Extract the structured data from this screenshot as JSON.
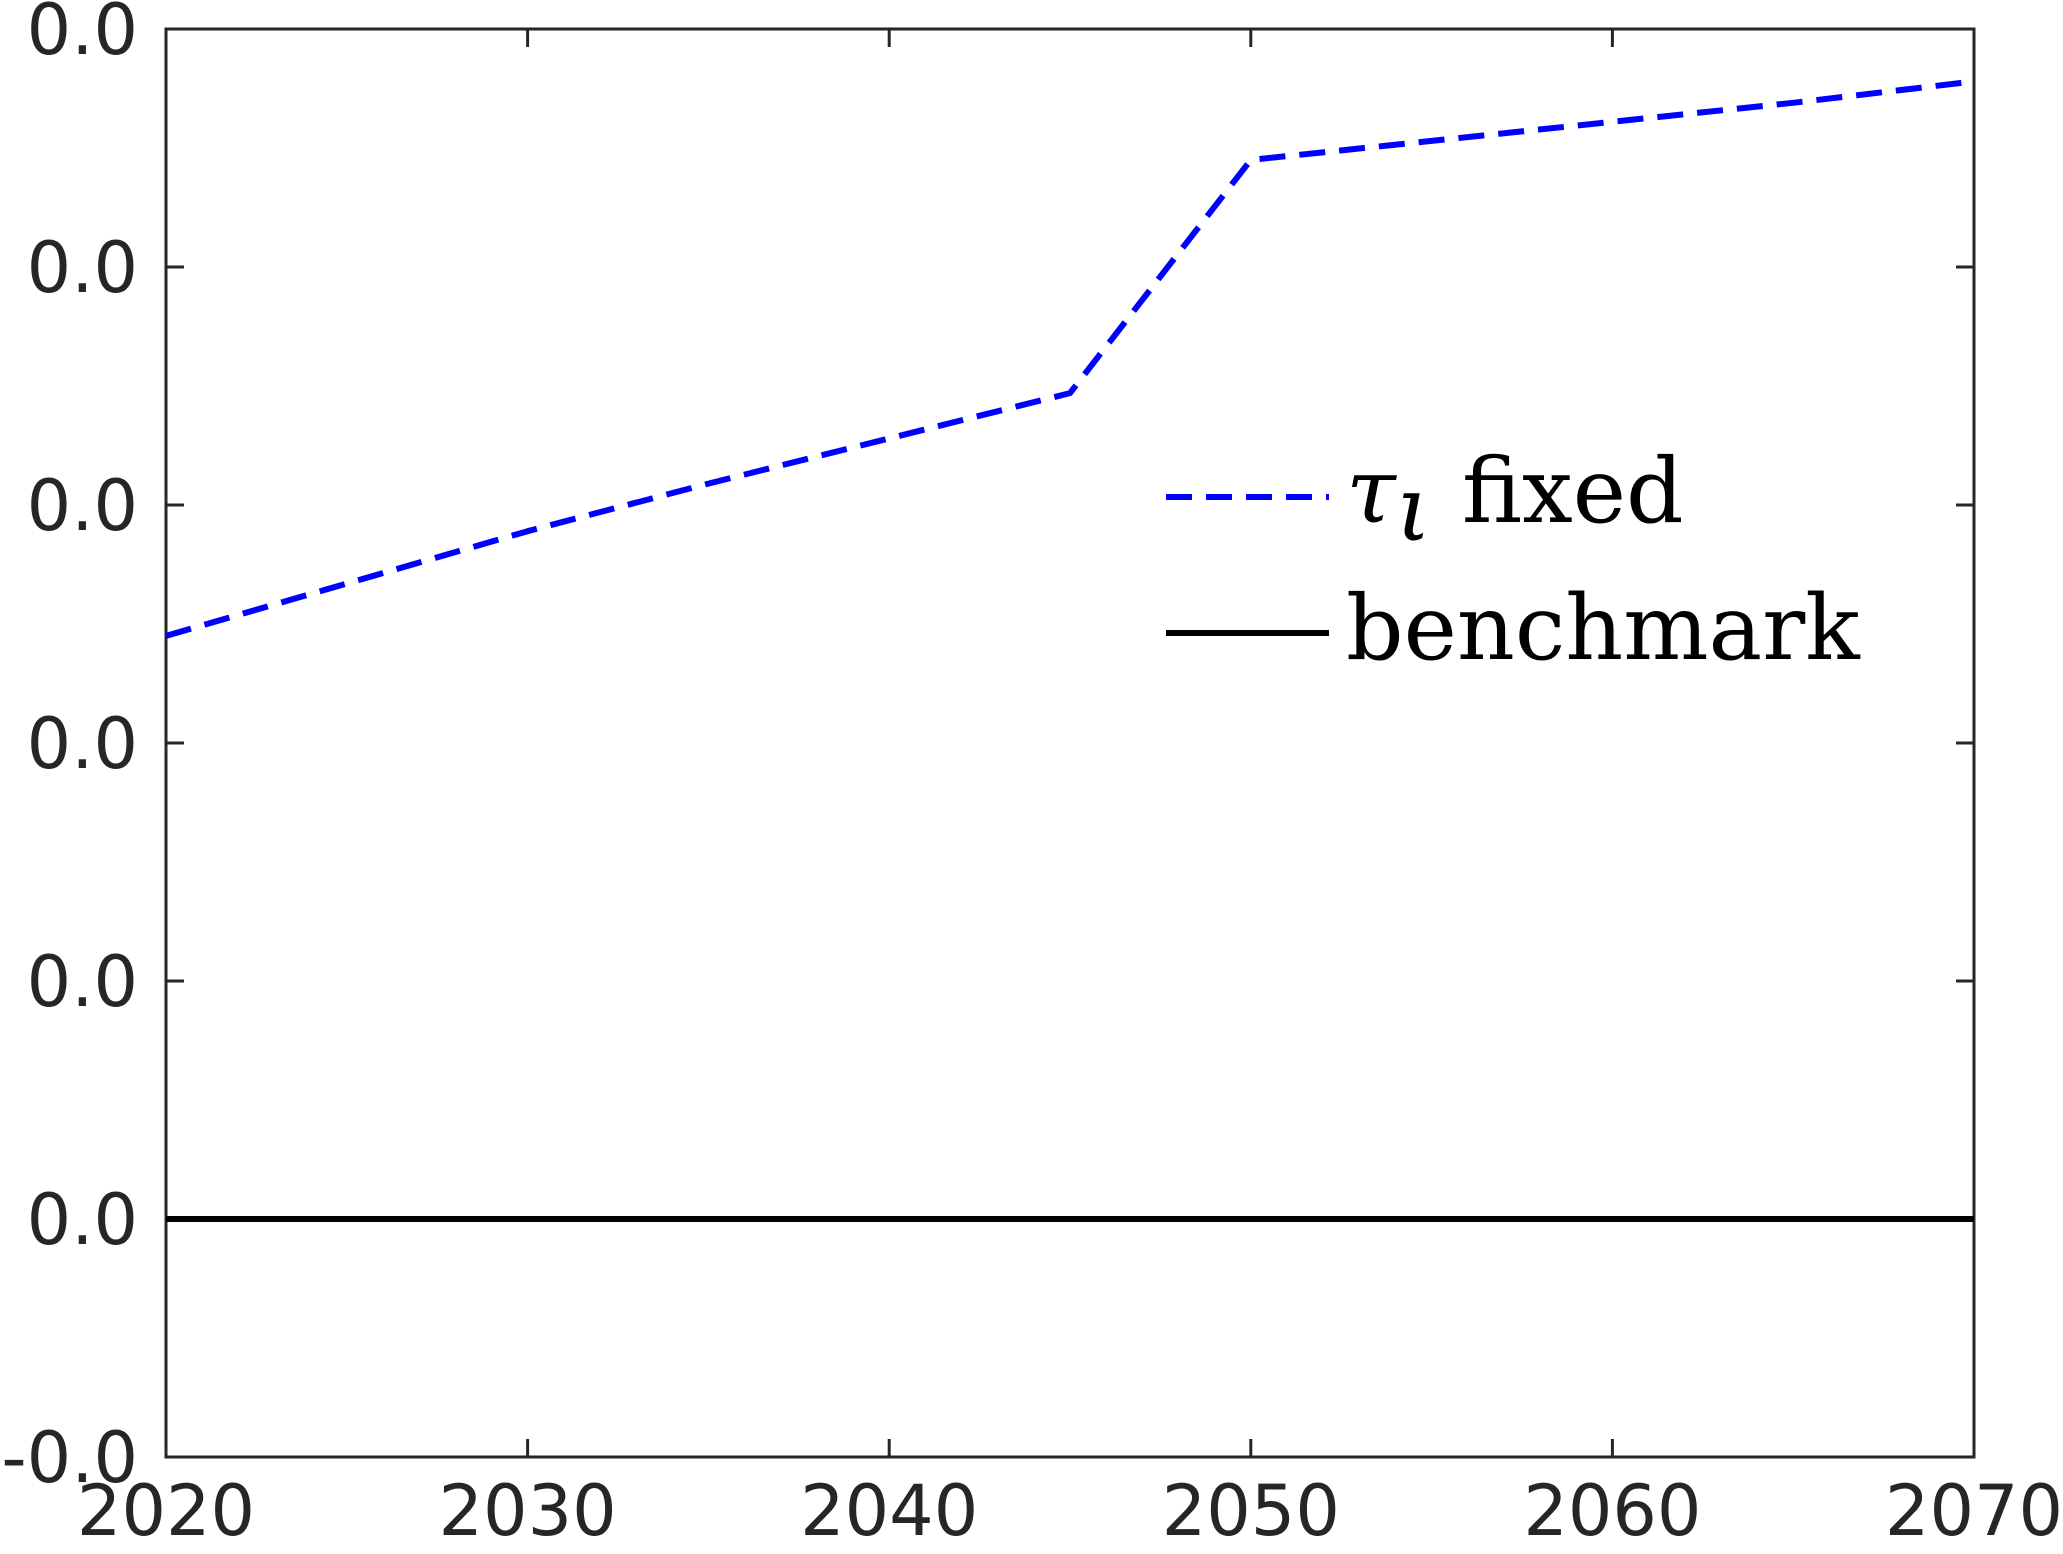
{
  "chart_data": {
    "type": "line",
    "title": "",
    "xlabel": "",
    "ylabel": "",
    "xlim": [
      2020,
      2070
    ],
    "ylim": [
      -0.06,
      0.0
    ],
    "grid": false,
    "legend_position": "center-right",
    "x_ticks": [
      "2020",
      "2030",
      "2040",
      "2050",
      "2060",
      "2070"
    ],
    "y_ticks": [
      "-0.0",
      "0.0",
      "0.0",
      "0.0",
      "0.0",
      "0.0",
      "0.0"
    ],
    "legend": {
      "tau_symbol": "τ",
      "tau_subscript": "ι",
      "tau_suffix": "fixed",
      "benchmark": "benchmark"
    },
    "series": [
      {
        "key": "tau_fixed",
        "style": "dashed",
        "color": "#0000ff",
        "x": [
          2020,
          2025,
          2030,
          2035,
          2040,
          2045,
          2050,
          2055,
          2060,
          2065,
          2070
        ],
        "y": [
          -0.0255,
          -0.0233,
          -0.0211,
          -0.0191,
          -0.0172,
          -0.0153,
          -0.0055,
          -0.0047,
          -0.0039,
          -0.0031,
          -0.0022
        ]
      },
      {
        "key": "benchmark",
        "style": "solid",
        "color": "#000000",
        "x": [
          2020,
          2070
        ],
        "y": [
          -0.05,
          -0.05
        ]
      }
    ]
  }
}
